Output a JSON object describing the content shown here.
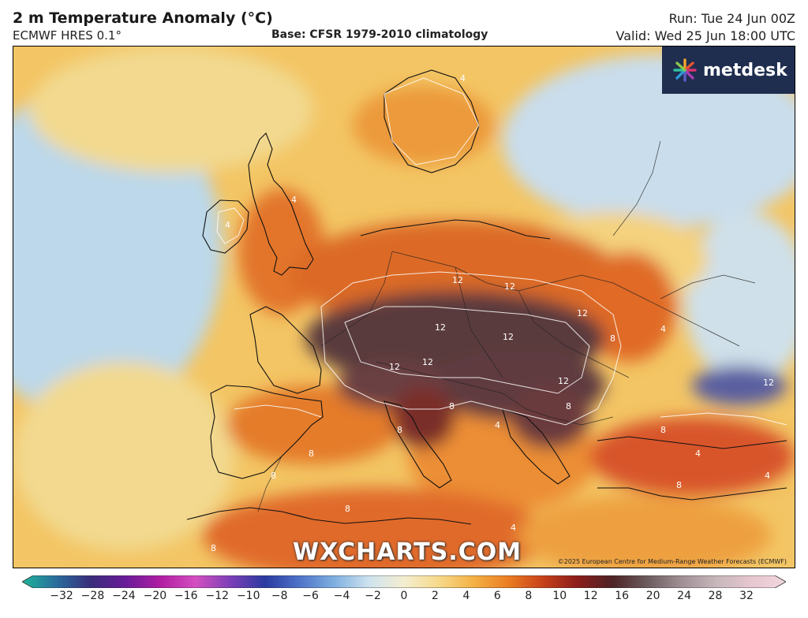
{
  "header": {
    "title": "2 m Temperature Anomaly (°C)",
    "model": "ECMWF HRES 0.1°",
    "base": "Base: CFSR 1979-2010 climatology",
    "run": "Run: Tue 24 Jun 00Z",
    "valid": "Valid: Wed 25 Jun 18:00 UTC"
  },
  "branding": {
    "logo_text": "metdesk",
    "watermark": "WXCHARTS.COM",
    "copyright": "©2025 European Centre for Medium-Range Weather Forecasts (ECMWF)"
  },
  "colorbar": {
    "ticks": [
      "−32",
      "−28",
      "−24",
      "−20",
      "−16",
      "−12",
      "−10",
      "−8",
      "−6",
      "−4",
      "−2",
      "0",
      "2",
      "4",
      "6",
      "8",
      "10",
      "12",
      "16",
      "20",
      "24",
      "28",
      "32"
    ],
    "stops": [
      "#1fb59a",
      "#2a6b9c",
      "#3a2c7a",
      "#6a1b9a",
      "#b11ea3",
      "#d44fc0",
      "#7c3fb8",
      "#2a3aa0",
      "#4f74c9",
      "#7fb0e0",
      "#cfe3ef",
      "#f4eed0",
      "#f6d98a",
      "#f4b144",
      "#eb7d22",
      "#c7411a",
      "#8b1c1a",
      "#4e2326",
      "#6b5b5e",
      "#a09095",
      "#c7b7bb",
      "#e6c6cf",
      "#f2d7de"
    ]
  },
  "contour_labels": [
    "12",
    "12",
    "12",
    "12",
    "12",
    "12",
    "12",
    "12",
    "12",
    "8",
    "8",
    "8",
    "8",
    "8",
    "8",
    "8",
    "8",
    "8",
    "8",
    "4",
    "4",
    "4",
    "4",
    "4",
    "4",
    "4",
    "4"
  ],
  "colors": {
    "anomaly_cold": "#bfd9ea",
    "anomaly_neutral": "#f6e3a8",
    "anomaly_warm": "#f0a33c",
    "anomaly_hot": "#d4531f",
    "anomaly_extreme": "#4a3036",
    "logo_bg": "#1f2d4f"
  }
}
